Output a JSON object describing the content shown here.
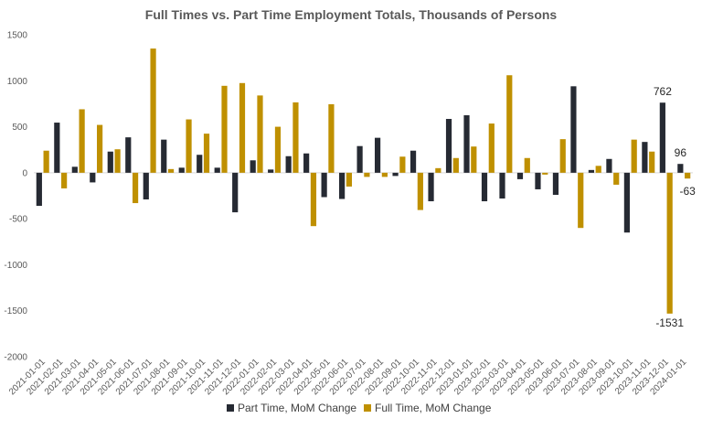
{
  "chart_data": {
    "type": "bar",
    "title": "Full Times vs. Part Time Employment Totals, Thousands of Persons",
    "xlabel": "",
    "ylabel": "",
    "ylim": [
      -2000,
      1500
    ],
    "yticks": [
      -2000,
      -1500,
      -1000,
      -500,
      0,
      500,
      1000,
      1500
    ],
    "grid": false,
    "legend_position": "bottom",
    "categories": [
      "2021-01-01",
      "2021-02-01",
      "2021-03-01",
      "2021-04-01",
      "2021-05-01",
      "2021-06-01",
      "2021-07-01",
      "2021-08-01",
      "2021-09-01",
      "2021-10-01",
      "2021-11-01",
      "2021-12-01",
      "2022-01-01",
      "2022-02-01",
      "2022-03-01",
      "2022-04-01",
      "2022-05-01",
      "2022-06-01",
      "2022-07-01",
      "2022-08-01",
      "2022-09-01",
      "2022-10-01",
      "2022-11-01",
      "2022-12-01",
      "2023-01-01",
      "2023-02-01",
      "2023-03-01",
      "2023-04-01",
      "2023-05-01",
      "2023-06-01",
      "2023-07-01",
      "2023-08-01",
      "2023-09-01",
      "2023-10-01",
      "2023-11-01",
      "2023-12-01",
      "2024-01-01"
    ],
    "series": [
      {
        "name": "Part Time, MoM Change",
        "color": "#262a33",
        "values": [
          -360,
          545,
          65,
          -105,
          230,
          385,
          -290,
          360,
          55,
          195,
          55,
          -430,
          135,
          35,
          180,
          210,
          -265,
          -285,
          290,
          380,
          -35,
          240,
          -310,
          585,
          625,
          -310,
          -280,
          -70,
          -180,
          -240,
          940,
          30,
          150,
          -650,
          335,
          762,
          96
        ]
      },
      {
        "name": "Full Time, MoM Change",
        "color": "#bf9000",
        "values": [
          240,
          -170,
          690,
          520,
          255,
          -330,
          1350,
          40,
          580,
          425,
          945,
          975,
          840,
          500,
          765,
          -580,
          745,
          -150,
          -45,
          -45,
          175,
          -405,
          50,
          160,
          285,
          535,
          1060,
          160,
          -20,
          365,
          -600,
          75,
          -130,
          360,
          230,
          -1531,
          -63
        ]
      }
    ],
    "data_labels": [
      {
        "text": "762"
      },
      {
        "text": "96"
      },
      {
        "text": "-63"
      },
      {
        "text": "-1531"
      }
    ]
  }
}
